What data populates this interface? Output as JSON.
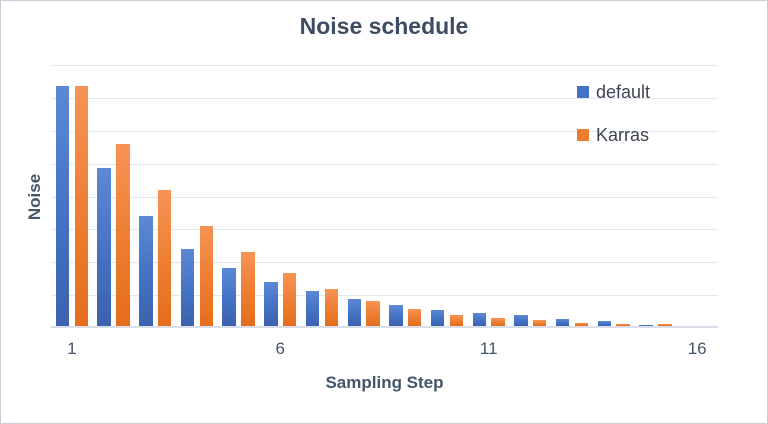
{
  "title": "Noise schedule",
  "x_axis_title": "Sampling Step",
  "y_axis_title": "Noise",
  "legend": {
    "items": [
      {
        "label": "default",
        "color_key": "blue"
      },
      {
        "label": "Karras",
        "color_key": "orange"
      }
    ]
  },
  "colors": {
    "blue": "#4472C4",
    "orange": "#ED7D31",
    "title_text": "#3f4d63",
    "axis_text": "#44546a",
    "gridline": "#e1e6ef"
  },
  "chart_data": {
    "type": "bar",
    "title": "Noise schedule",
    "xlabel": "Sampling Step",
    "ylabel": "Noise",
    "grid": true,
    "legend_position": "top-right",
    "categories": [
      1,
      2,
      3,
      4,
      5,
      6,
      7,
      8,
      9,
      10,
      11,
      12,
      13,
      14,
      15,
      16
    ],
    "x_ticks": [
      {
        "value": 1,
        "label": "1"
      },
      {
        "value": 6,
        "label": "6"
      },
      {
        "value": 11,
        "label": "11"
      },
      {
        "value": 16,
        "label": "16"
      }
    ],
    "ylim": [
      0,
      16
    ],
    "gridline_step": 2,
    "series": [
      {
        "name": "default",
        "color_key": "blue",
        "values": [
          14.6,
          9.6,
          6.7,
          4.7,
          3.5,
          2.7,
          2.1,
          1.65,
          1.25,
          1.0,
          0.8,
          0.65,
          0.45,
          0.3,
          0.05,
          0.02
        ]
      },
      {
        "name": "Karras",
        "color_key": "orange",
        "values": [
          14.6,
          11.1,
          8.25,
          6.1,
          4.5,
          3.2,
          2.25,
          1.55,
          1.05,
          0.7,
          0.5,
          0.35,
          0.2,
          0.1,
          0.15,
          0.02
        ]
      }
    ]
  }
}
